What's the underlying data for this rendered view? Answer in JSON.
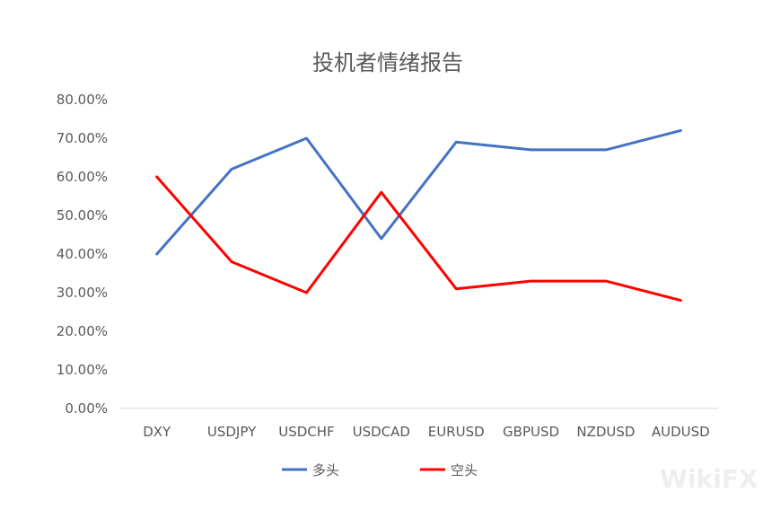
{
  "chart_data": {
    "type": "line",
    "title": "投机者情绪报告",
    "categories": [
      "DXY",
      "USDJPY",
      "USDCHF",
      "USDCAD",
      "EURUSD",
      "GBPUSD",
      "NZDUSD",
      "AUDUSD"
    ],
    "series": [
      {
        "name": "多头",
        "color": "#4472C4",
        "values": [
          40,
          62,
          70,
          44,
          69,
          67,
          67,
          72
        ]
      },
      {
        "name": "空头",
        "color": "#FF0000",
        "values": [
          60,
          38,
          30,
          56,
          31,
          33,
          33,
          28
        ]
      }
    ],
    "y_ticks": [
      "0.00%",
      "10.00%",
      "20.00%",
      "30.00%",
      "40.00%",
      "50.00%",
      "60.00%",
      "70.00%",
      "80.00%"
    ],
    "ylim": [
      0,
      80
    ],
    "grid": false,
    "legend": "bottom"
  },
  "watermark": "WikiFX"
}
